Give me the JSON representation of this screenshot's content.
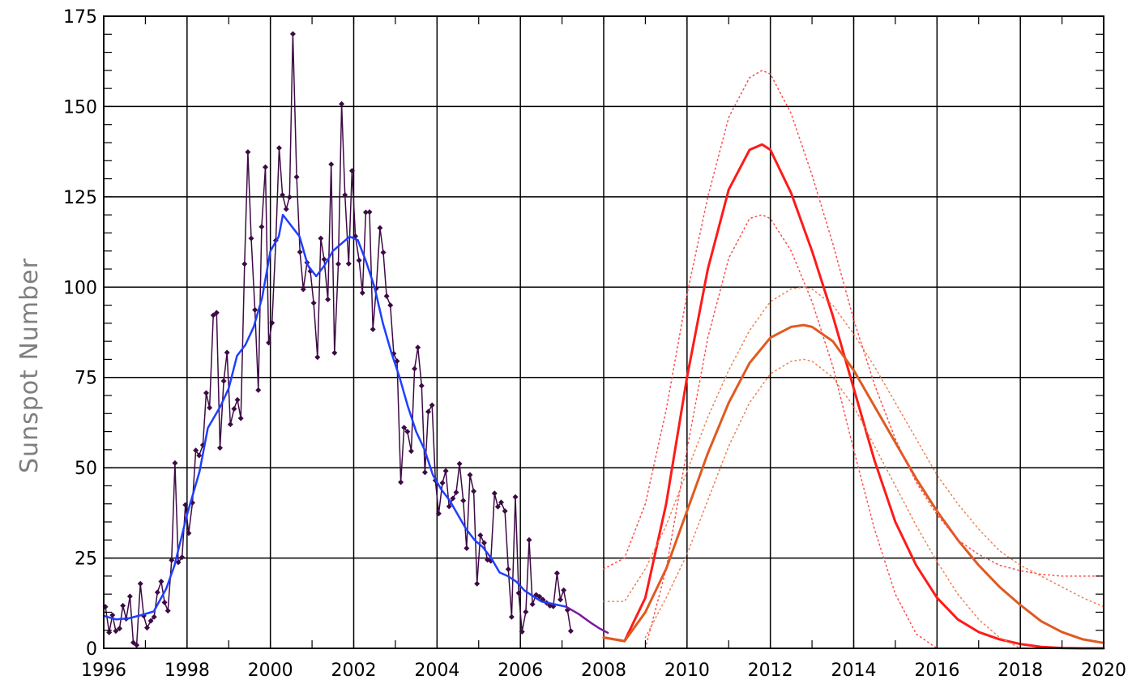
{
  "chart_data": {
    "type": "line",
    "title": "",
    "xlabel": "",
    "ylabel": "Sunspot Number",
    "xlim": [
      1996,
      2020
    ],
    "ylim": [
      0,
      175
    ],
    "grid": true,
    "legend": "none",
    "x_ticks": [
      1996,
      1998,
      2000,
      2002,
      2004,
      2006,
      2008,
      2010,
      2012,
      2014,
      2016,
      2018,
      2020
    ],
    "y_ticks": [
      0,
      25,
      50,
      75,
      100,
      125,
      150,
      175
    ],
    "colors": {
      "monthly": "#3d0a45",
      "smoothed": "#1f3fff",
      "recent_smoothed": "#7a1aa0",
      "prediction_high": "#ff1a1a",
      "prediction_low": "#e05a20",
      "prediction_high_bounds": "#ff4a4a",
      "prediction_low_bounds": "#ef8050"
    },
    "series": [
      {
        "role": "monthly",
        "style": "line-markers",
        "x": [
          1996.04,
          1996.13,
          1996.21,
          1996.29,
          1996.38,
          1996.46,
          1996.54,
          1996.63,
          1996.71,
          1996.79,
          1996.88,
          1996.96,
          1997.04,
          1997.13,
          1997.21,
          1997.29,
          1997.38,
          1997.46,
          1997.54,
          1997.63,
          1997.71,
          1997.79,
          1997.88,
          1997.96,
          1998.04,
          1998.13,
          1998.21,
          1998.29,
          1998.38,
          1998.46,
          1998.54,
          1998.63,
          1998.71,
          1998.79,
          1998.88,
          1998.96,
          1999.04,
          1999.13,
          1999.21,
          1999.29,
          1999.38,
          1999.46,
          1999.54,
          1999.63,
          1999.71,
          1999.79,
          1999.88,
          1999.96,
          2000.04,
          2000.13,
          2000.21,
          2000.29,
          2000.38,
          2000.46,
          2000.54,
          2000.63,
          2000.71,
          2000.79,
          2000.88,
          2000.96,
          2001.04,
          2001.13,
          2001.21,
          2001.29,
          2001.38,
          2001.46,
          2001.54,
          2001.63,
          2001.71,
          2001.79,
          2001.88,
          2001.96,
          2002.04,
          2002.13,
          2002.21,
          2002.29,
          2002.38,
          2002.46,
          2002.54,
          2002.63,
          2002.71,
          2002.79,
          2002.88,
          2002.96,
          2003.04,
          2003.13,
          2003.21,
          2003.29,
          2003.38,
          2003.46,
          2003.54,
          2003.63,
          2003.71,
          2003.79,
          2003.88,
          2003.96,
          2004.04,
          2004.13,
          2004.21,
          2004.29,
          2004.38,
          2004.46,
          2004.54,
          2004.63,
          2004.71,
          2004.79,
          2004.88,
          2004.96,
          2005.04,
          2005.13,
          2005.21,
          2005.29,
          2005.38,
          2005.46,
          2005.54,
          2005.63,
          2005.71,
          2005.79,
          2005.88,
          2005.96,
          2006.04,
          2006.13,
          2006.21,
          2006.29,
          2006.38,
          2006.46,
          2006.54,
          2006.63,
          2006.71,
          2006.79,
          2006.88,
          2006.96,
          2007.04,
          2007.13,
          2007.21
        ],
        "y": [
          11.5,
          4.4,
          9.2,
          4.8,
          5.5,
          11.8,
          8.2,
          14.4,
          1.6,
          0.9,
          17.9,
          9.0,
          5.7,
          7.6,
          8.7,
          15.5,
          18.5,
          12.7,
          10.4,
          24.4,
          51.3,
          23.8,
          25.2,
          39.7,
          31.9,
          40.3,
          54.8,
          53.4,
          56.3,
          70.7,
          66.6,
          92.2,
          92.9,
          55.5,
          74.0,
          81.9,
          62.0,
          66.3,
          68.8,
          63.7,
          106.4,
          137.4,
          113.5,
          93.7,
          71.5,
          116.7,
          133.2,
          84.6,
          90.1,
          112.9,
          138.5,
          125.5,
          121.6,
          124.9,
          170.1,
          130.5,
          109.7,
          99.4,
          106.8,
          104.4,
          95.6,
          80.6,
          113.5,
          107.7,
          96.6,
          134.0,
          81.8,
          106.4,
          150.7,
          125.5,
          106.5,
          132.2,
          114.1,
          107.4,
          98.4,
          120.7,
          120.8,
          88.3,
          99.6,
          116.4,
          109.6,
          97.5,
          95.0,
          81.6,
          79.5,
          46.0,
          61.1,
          60.0,
          54.6,
          77.4,
          83.3,
          72.7,
          48.7,
          65.5,
          67.3,
          46.5,
          37.3,
          45.8,
          49.1,
          39.3,
          41.5,
          43.2,
          51.1,
          40.9,
          27.7,
          48.0,
          43.5,
          17.9,
          31.3,
          29.2,
          24.5,
          24.2,
          42.9,
          39.2,
          40.4,
          38.0,
          21.9,
          8.7,
          41.9,
          15.3,
          4.6,
          10.1,
          30.0,
          12.2,
          14.8,
          14.3,
          13.5,
          12.6,
          11.8,
          11.6,
          20.8,
          13.5,
          16.1,
          10.6,
          4.8
        ]
      },
      {
        "role": "smoothed",
        "style": "line",
        "x": [
          1996.0,
          1996.3,
          1996.6,
          1996.9,
          1997.2,
          1997.5,
          1997.7,
          1998.0,
          1998.3,
          1998.5,
          1998.8,
          1999.0,
          1999.2,
          1999.4,
          1999.6,
          1999.8,
          2000.0,
          2000.2,
          2000.3,
          2000.5,
          2000.7,
          2000.9,
          2001.1,
          2001.3,
          2001.5,
          2001.7,
          2001.9,
          2002.1,
          2002.3,
          2002.5,
          2002.7,
          2002.9,
          2003.1,
          2003.3,
          2003.5,
          2003.7,
          2003.9,
          2004.1,
          2004.3,
          2004.5,
          2004.7,
          2004.9,
          2005.1,
          2005.3,
          2005.5,
          2005.7,
          2005.9,
          2006.1,
          2006.3,
          2006.5,
          2006.7,
          2006.9,
          2007.1
        ],
        "y": [
          9.0,
          8.0,
          8.3,
          9.2,
          10.2,
          16.5,
          23.0,
          37.0,
          49.0,
          61.0,
          67.0,
          72.0,
          81.0,
          84.0,
          89.0,
          97.0,
          110.0,
          114.0,
          120.0,
          117.0,
          114.0,
          106.0,
          103.0,
          106.0,
          110.0,
          112.0,
          114.0,
          113.0,
          107.0,
          100.0,
          90.0,
          82.0,
          75.0,
          67.0,
          60.0,
          55.0,
          48.0,
          44.0,
          41.0,
          37.0,
          33.0,
          30.0,
          28.0,
          25.0,
          21.0,
          20.0,
          18.5,
          16.0,
          14.5,
          13.0,
          12.5,
          12.0,
          11.5
        ]
      },
      {
        "role": "recent_smoothed",
        "style": "line",
        "x": [
          2007.1,
          2007.4,
          2007.7,
          2007.9,
          2008.1
        ],
        "y": [
          11.5,
          9.5,
          7.0,
          5.5,
          4.3
        ]
      },
      {
        "role": "prediction_high",
        "style": "line-thick",
        "x": [
          2008.0,
          2008.5,
          2009.0,
          2009.5,
          2010.0,
          2010.5,
          2011.0,
          2011.5,
          2011.8,
          2012.0,
          2012.5,
          2013.0,
          2013.5,
          2014.0,
          2014.5,
          2015.0,
          2015.5,
          2016.0,
          2016.5,
          2017.0,
          2017.5,
          2018.0,
          2018.5,
          2019.0,
          2019.5,
          2020.0
        ],
        "y": [
          3,
          2,
          14,
          40,
          75,
          105,
          127,
          138,
          139.5,
          138,
          126,
          110,
          92,
          72,
          52,
          35,
          23,
          14,
          8,
          4.5,
          2.5,
          1.2,
          0.4,
          0.1,
          0,
          0
        ]
      },
      {
        "role": "prediction_low",
        "style": "line-thick",
        "x": [
          2008.0,
          2008.5,
          2009.0,
          2009.5,
          2010.0,
          2010.5,
          2011.0,
          2011.5,
          2012.0,
          2012.5,
          2012.8,
          2013.0,
          2013.5,
          2014.0,
          2014.5,
          2015.0,
          2015.5,
          2016.0,
          2016.5,
          2017.0,
          2017.5,
          2018.0,
          2018.5,
          2019.0,
          2019.5,
          2020.0
        ],
        "y": [
          3,
          2,
          10,
          22,
          38,
          54,
          68,
          79,
          86,
          89,
          89.5,
          89,
          85,
          77,
          67,
          57,
          47,
          38,
          30,
          23,
          17,
          12,
          7.5,
          4.5,
          2.5,
          1.5
        ]
      },
      {
        "role": "prediction_high_bounds",
        "style": "dotted",
        "x": [
          2008.0,
          2008.5,
          2009.0,
          2009.5,
          2010.0,
          2010.5,
          2011.0,
          2011.5,
          2011.8,
          2012.0,
          2012.5,
          2013.0,
          2013.5,
          2014.0,
          2014.5,
          2015.0,
          2015.5,
          2016.0,
          2016.5,
          2017.0,
          2017.5,
          2018.0,
          2018.5,
          2019.0,
          2019.5,
          2020.0
        ],
        "y": [
          22,
          25,
          40,
          66,
          98,
          125,
          147,
          158,
          160,
          159,
          148,
          131,
          112,
          91,
          73,
          58,
          46,
          37,
          30,
          26,
          23,
          21.5,
          20.5,
          20,
          20,
          20
        ]
      },
      {
        "role": "prediction_high_bounds",
        "style": "dotted",
        "x": [
          2009.0,
          2009.5,
          2010.0,
          2010.5,
          2011.0,
          2011.5,
          2011.8,
          2012.0,
          2012.5,
          2013.0,
          2013.5,
          2014.0,
          2014.5,
          2015.0,
          2015.5,
          2016.0
        ],
        "y": [
          0,
          22,
          55,
          86,
          108,
          119,
          120,
          119,
          110,
          96,
          78,
          55,
          33,
          15,
          4,
          0
        ]
      },
      {
        "role": "prediction_low_bounds",
        "style": "dotted",
        "x": [
          2008.0,
          2008.5,
          2009.0,
          2009.5,
          2010.0,
          2010.5,
          2011.0,
          2011.5,
          2012.0,
          2012.5,
          2012.8,
          2013.0,
          2013.5,
          2014.0,
          2014.5,
          2015.0,
          2015.5,
          2016.0,
          2016.5,
          2017.0,
          2017.5,
          2018.0,
          2018.5,
          2019.0,
          2019.5,
          2020.0
        ],
        "y": [
          13,
          13,
          22,
          34,
          49,
          64,
          77,
          88,
          96,
          99.5,
          100,
          99.5,
          95,
          87,
          78,
          68,
          58,
          48,
          40,
          33,
          27,
          23,
          20,
          17,
          14,
          11.5
        ]
      },
      {
        "role": "prediction_low_bounds",
        "style": "dotted",
        "x": [
          2009.0,
          2009.5,
          2010.0,
          2010.5,
          2011.0,
          2011.5,
          2012.0,
          2012.5,
          2012.8,
          2013.0,
          2013.5,
          2014.0,
          2014.5,
          2015.0,
          2015.5,
          2016.0,
          2016.5,
          2017.0,
          2017.5,
          2018.0
        ],
        "y": [
          3,
          14,
          26,
          41,
          56,
          68,
          76,
          79.5,
          80,
          79.5,
          75,
          67,
          56,
          45,
          34,
          24,
          15,
          8,
          3,
          0
        ]
      }
    ]
  }
}
